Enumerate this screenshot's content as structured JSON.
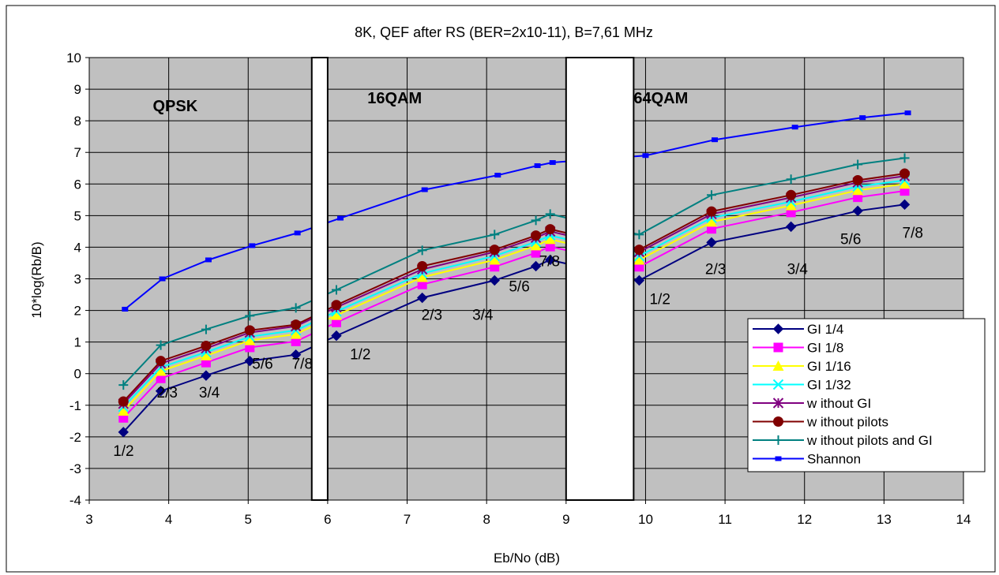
{
  "chart_data": {
    "type": "line",
    "title": "8K, QEF after RS (BER=2x10-11), B=7,61 MHz",
    "xlabel": "Eb/No (dB)",
    "ylabel": "10*log(Rb/B)",
    "xlim": [
      3,
      14
    ],
    "ylim": [
      -4,
      10
    ],
    "xticks": [
      "3",
      "4",
      "5",
      "6",
      "7",
      "8",
      "9",
      "10",
      "11",
      "12",
      "13",
      "14"
    ],
    "yticks": [
      "-4",
      "-3",
      "-2",
      "-1",
      "0",
      "1",
      "2",
      "3",
      "4",
      "5",
      "6",
      "7",
      "8",
      "9",
      "10"
    ],
    "grid": true,
    "legend_position": "bottom-right",
    "plot_background": "#c0c0c0",
    "section_labels": [
      {
        "text": "QPSK",
        "x": 3.8,
        "y": 8.3
      },
      {
        "text": "16QAM",
        "x": 6.5,
        "y": 8.55
      },
      {
        "text": "64QAM",
        "x": 9.85,
        "y": 8.55
      }
    ],
    "rate_labels": [
      {
        "text": "1/2",
        "x": 3.3,
        "y": -2.6
      },
      {
        "text": "2/3",
        "x": 3.85,
        "y": -0.75
      },
      {
        "text": "3/4",
        "x": 4.38,
        "y": -0.75
      },
      {
        "text": "5/6",
        "x": 5.05,
        "y": 0.15
      },
      {
        "text": "7/8",
        "x": 5.55,
        "y": 0.15
      },
      {
        "text": "1/2",
        "x": 6.28,
        "y": 0.45
      },
      {
        "text": "2/3",
        "x": 7.18,
        "y": 1.7
      },
      {
        "text": "3/4",
        "x": 7.82,
        "y": 1.7
      },
      {
        "text": "5/6",
        "x": 8.28,
        "y": 2.6
      },
      {
        "text": "7/8",
        "x": 8.66,
        "y": 3.4
      },
      {
        "text": "1/2",
        "x": 10.05,
        "y": 2.2
      },
      {
        "text": "2/3",
        "x": 10.75,
        "y": 3.15
      },
      {
        "text": "3/4",
        "x": 11.78,
        "y": 3.15
      },
      {
        "text": "5/6",
        "x": 12.45,
        "y": 4.1
      },
      {
        "text": "7/8",
        "x": 13.23,
        "y": 4.3
      }
    ],
    "gaps": [
      {
        "x0": 5.8,
        "x1": 6.0
      },
      {
        "x0": 9.0,
        "x1": 9.85
      }
    ],
    "series": [
      {
        "name": "GI 1/4",
        "color": "#000080",
        "marker": "diamond",
        "x": [
          3.43,
          3.9,
          4.47,
          5.02,
          5.6,
          6.11,
          7.19,
          8.1,
          8.62,
          8.8,
          9.92,
          10.83,
          11.83,
          12.67,
          13.26
        ],
        "y": [
          -1.85,
          -0.55,
          -0.06,
          0.4,
          0.6,
          1.2,
          2.4,
          2.95,
          3.4,
          3.6,
          2.95,
          4.15,
          4.65,
          5.15,
          5.35
        ]
      },
      {
        "name": "GI 1/8",
        "color": "#ff00ff",
        "marker": "square",
        "x": [
          3.43,
          3.9,
          4.47,
          5.02,
          5.6,
          6.11,
          7.19,
          8.1,
          8.62,
          8.8,
          9.92,
          10.83,
          11.83,
          12.67,
          13.26
        ],
        "y": [
          -1.4,
          -0.15,
          0.35,
          0.83,
          1.02,
          1.62,
          2.82,
          3.38,
          3.82,
          4.02,
          3.38,
          4.58,
          5.1,
          5.58,
          5.78
        ]
      },
      {
        "name": "GI 1/16",
        "color": "#ffff00",
        "marker": "triangle",
        "x": [
          3.43,
          3.9,
          4.47,
          5.02,
          5.6,
          6.11,
          7.19,
          8.1,
          8.62,
          8.8,
          9.92,
          10.83,
          11.83,
          12.67,
          13.26
        ],
        "y": [
          -1.18,
          0.08,
          0.57,
          1.05,
          1.25,
          1.85,
          3.05,
          3.6,
          4.05,
          4.25,
          3.6,
          4.8,
          5.32,
          5.8,
          6.0
        ]
      },
      {
        "name": "GI 1/32",
        "color": "#00ffff",
        "marker": "x",
        "x": [
          3.43,
          3.9,
          4.47,
          5.02,
          5.6,
          6.11,
          7.19,
          8.1,
          8.62,
          8.8,
          9.92,
          10.83,
          11.83,
          12.67,
          13.26
        ],
        "y": [
          -1.05,
          0.2,
          0.68,
          1.17,
          1.37,
          1.97,
          3.17,
          3.72,
          4.17,
          4.37,
          3.72,
          4.93,
          5.44,
          5.92,
          6.12
        ]
      },
      {
        "name": "w ithout GI",
        "color": "#800080",
        "marker": "star",
        "x": [
          3.43,
          3.9,
          4.47,
          5.02,
          5.6,
          6.11,
          7.19,
          8.1,
          8.62,
          8.8,
          9.92,
          10.83,
          11.83,
          12.67,
          13.26
        ],
        "y": [
          -0.95,
          0.32,
          0.8,
          1.3,
          1.5,
          2.1,
          3.3,
          3.85,
          4.3,
          4.5,
          3.85,
          5.05,
          5.57,
          6.05,
          6.25
        ]
      },
      {
        "name": "w ithout pilots",
        "color": "#800000",
        "marker": "circle",
        "x": [
          3.43,
          3.9,
          4.47,
          5.02,
          5.6,
          6.11,
          7.19,
          8.1,
          8.62,
          8.8,
          9.92,
          10.83,
          11.83,
          12.67,
          13.26
        ],
        "y": [
          -0.88,
          0.4,
          0.88,
          1.37,
          1.55,
          2.17,
          3.4,
          3.92,
          4.37,
          4.57,
          3.92,
          5.13,
          5.65,
          6.12,
          6.33
        ]
      },
      {
        "name": "w ithout pilots and GI",
        "color": "#008080",
        "marker": "plus",
        "x": [
          3.43,
          3.9,
          4.47,
          5.02,
          5.6,
          6.11,
          7.19,
          8.1,
          8.62,
          8.8,
          9.92,
          10.83,
          11.83,
          12.67,
          13.26
        ],
        "y": [
          -0.36,
          0.9,
          1.4,
          1.83,
          2.08,
          2.65,
          3.9,
          4.4,
          4.85,
          5.05,
          4.4,
          5.65,
          6.15,
          6.62,
          6.82
        ]
      },
      {
        "name": "Shannon",
        "color": "#0000ff",
        "marker": "smallsquare",
        "x": [
          3.45,
          3.92,
          4.5,
          5.05,
          5.62,
          6.16,
          7.22,
          8.14,
          8.64,
          8.83,
          10.0,
          10.87,
          11.88,
          12.73,
          13.3
        ],
        "y": [
          2.04,
          3.0,
          3.6,
          4.05,
          4.45,
          4.92,
          5.82,
          6.28,
          6.58,
          6.68,
          6.9,
          7.4,
          7.8,
          8.1,
          8.25
        ]
      }
    ]
  }
}
